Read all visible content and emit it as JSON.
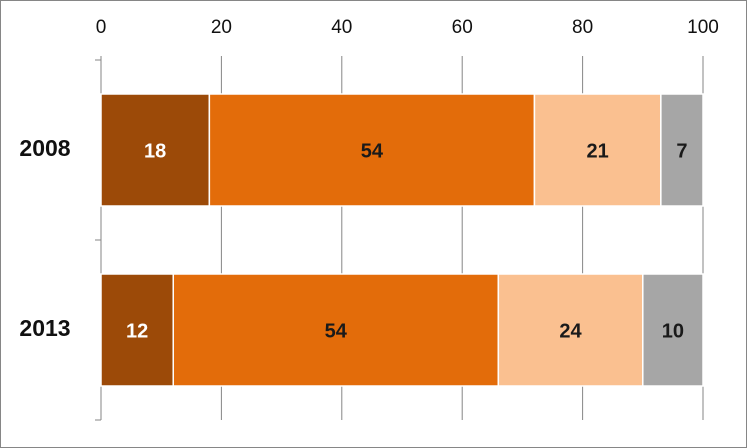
{
  "chart_data": {
    "type": "stacked-bar-horizontal",
    "categories": [
      "2008",
      "2013"
    ],
    "series": [
      {
        "color": "#9c4a08",
        "label_color": "#ffffff",
        "values": [
          18,
          12
        ]
      },
      {
        "color": "#e36c0a",
        "label_color": "#1a1a1a",
        "values": [
          54,
          54
        ]
      },
      {
        "color": "#fac090",
        "label_color": "#1a1a1a",
        "values": [
          21,
          24
        ]
      },
      {
        "color": "#a6a6a6",
        "label_color": "#1a1a1a",
        "values": [
          7,
          10
        ]
      }
    ],
    "xlim": [
      0,
      100
    ],
    "xticks": [
      0,
      20,
      40,
      60,
      80,
      100
    ],
    "grid": true
  }
}
